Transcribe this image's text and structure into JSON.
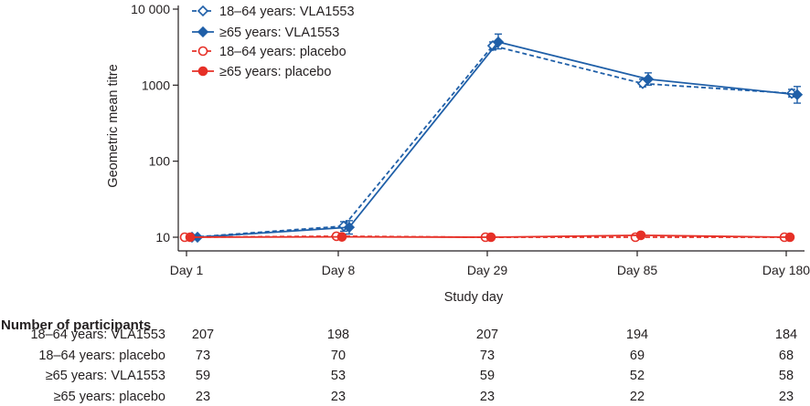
{
  "chart_data": {
    "type": "line",
    "xlabel": "Study day",
    "ylabel": "Geometric mean titre",
    "y_scale": "log",
    "ylim": [
      10,
      10000
    ],
    "x": [
      "Day 1",
      "Day 8",
      "Day 29",
      "Day 85",
      "Day 180"
    ],
    "y_ticks": [
      "10",
      "100",
      "1000",
      "10 000"
    ],
    "grid": false,
    "legend_position": "top-left",
    "series": [
      {
        "name": "18–64 years: VLA1553",
        "color": "#1f5fa8",
        "dashed": true,
        "marker": "diamond-open",
        "values": [
          10,
          14,
          3300,
          1050,
          780
        ],
        "err_low": [
          10,
          12,
          2900,
          950,
          700
        ],
        "err_high": [
          10,
          16,
          3700,
          1200,
          880
        ]
      },
      {
        "name": "≥65 years: VLA1553",
        "color": "#1f5fa8",
        "dashed": false,
        "marker": "diamond-filled",
        "values": [
          10,
          13.5,
          3700,
          1200,
          750
        ],
        "err_low": [
          10,
          11,
          3000,
          1000,
          580
        ],
        "err_high": [
          10,
          16.5,
          4700,
          1450,
          960
        ]
      },
      {
        "name": "18–64 years: placebo",
        "color": "#e63027",
        "dashed": true,
        "marker": "circle-open",
        "values": [
          10,
          10.3,
          10,
          10,
          10
        ],
        "err_low": [
          10,
          10,
          10,
          9.8,
          10
        ],
        "err_high": [
          10,
          10.6,
          10,
          10.3,
          10
        ]
      },
      {
        "name": "≥65 years: placebo",
        "color": "#e63027",
        "dashed": false,
        "marker": "circle-filled",
        "values": [
          10,
          10.1,
          10,
          10.6,
          10
        ],
        "err_low": [
          10,
          10,
          10,
          10,
          10
        ],
        "err_high": [
          10,
          10.3,
          10,
          11.5,
          10
        ]
      }
    ]
  },
  "participants_table": {
    "header": "Number of participants",
    "rows": [
      {
        "label": "18–64 years: VLA1553",
        "values": [
          "207",
          "198",
          "207",
          "194",
          "184"
        ]
      },
      {
        "label": "18–64 years: placebo",
        "values": [
          "73",
          "70",
          "73",
          "69",
          "68"
        ]
      },
      {
        "label": "≥65 years: VLA1553",
        "values": [
          "59",
          "53",
          "59",
          "52",
          "58"
        ]
      },
      {
        "label": "≥65 years: placebo",
        "values": [
          "23",
          "23",
          "23",
          "22",
          "23"
        ]
      }
    ]
  }
}
